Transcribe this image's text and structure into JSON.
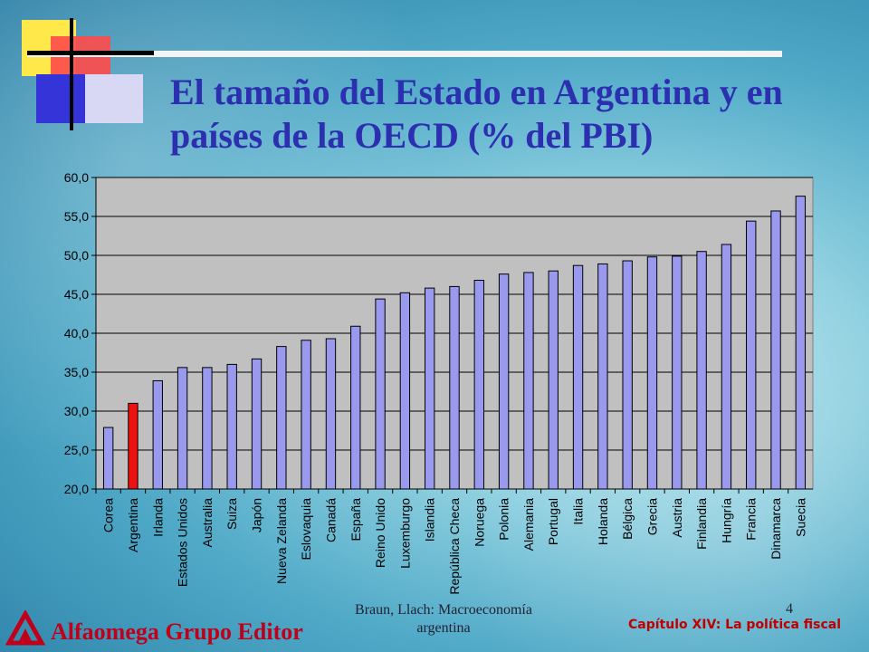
{
  "title": "El tamaño del Estado en Argentina y en países de la OECD (% del PBI)",
  "footer": {
    "author_line1": "Braun, Llach: Macroeconomía",
    "author_line2": "argentina",
    "page_number": "4",
    "chapter": "Capítulo XIV: La política fiscal",
    "publisher": "Alfaomega Grupo Editor"
  },
  "colors": {
    "bar": "#9999ee",
    "highlight": "#ee1111",
    "plot_bg": "#c0c0c0",
    "title": "#2b2fb0"
  },
  "chart_data": {
    "type": "bar",
    "title": "",
    "xlabel": "",
    "ylabel": "",
    "ylim": [
      20,
      60
    ],
    "yticks": [
      "20,0",
      "25,0",
      "30,0",
      "35,0",
      "40,0",
      "45,0",
      "50,0",
      "55,0",
      "60,0"
    ],
    "grid": true,
    "highlight_category": "Argentina",
    "categories": [
      "Corea",
      "Argentina",
      "Irlanda",
      "Estados Unidos",
      "Australia",
      "Suiza",
      "Japón",
      "Nueva Zelanda",
      "Eslovaquia",
      "Canadá",
      "España",
      "Reino Unido",
      "Luxemburgo",
      "Islandia",
      "República Checa",
      "Noruega",
      "Polonia",
      "Alemania",
      "Portugal",
      "Italia",
      "Holanda",
      "Bélgica",
      "Grecia",
      "Austria",
      "Finlandia",
      "Hungría",
      "Francia",
      "Dinamarca",
      "Suecia"
    ],
    "values": [
      27.9,
      31.0,
      33.9,
      35.6,
      35.6,
      36.0,
      36.7,
      38.3,
      39.1,
      39.3,
      40.9,
      44.4,
      45.2,
      45.8,
      46.0,
      46.8,
      47.6,
      47.8,
      48.0,
      48.7,
      48.9,
      49.3,
      49.8,
      49.9,
      50.5,
      51.4,
      54.4,
      55.7,
      57.6
    ]
  }
}
